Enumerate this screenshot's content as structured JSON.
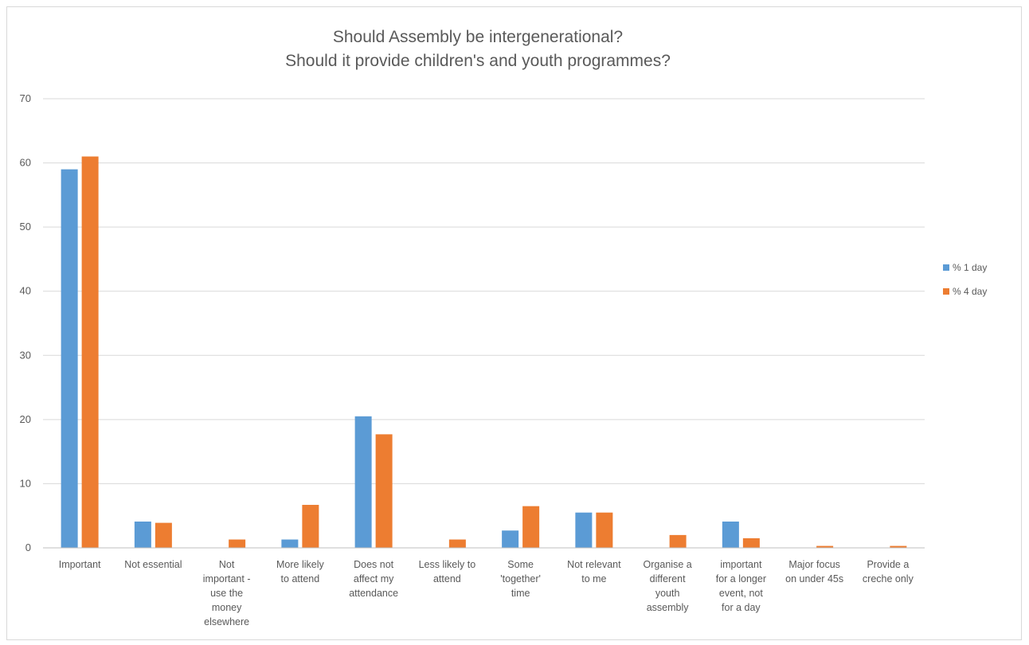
{
  "chart_data": {
    "type": "bar",
    "title": [
      "Should Assembly be intergenerational?",
      "Should it provide children's and youth programmes?"
    ],
    "categories": [
      [
        "Important"
      ],
      [
        "Not essential"
      ],
      [
        "Not",
        "important -",
        "use the",
        "money",
        "elsewhere"
      ],
      [
        "More likely",
        "to attend"
      ],
      [
        "Does not",
        "affect my",
        "attendance"
      ],
      [
        "Less likely to",
        "attend"
      ],
      [
        "Some",
        "'together'",
        "time"
      ],
      [
        "Not relevant",
        "to me"
      ],
      [
        "Organise a",
        "different",
        "youth",
        "assembly"
      ],
      [
        "important",
        "for a longer",
        "event, not",
        "for a day"
      ],
      [
        "Major focus",
        "on under 45s"
      ],
      [
        "Provide a",
        "creche only"
      ]
    ],
    "series": [
      {
        "name": "% 1 day",
        "color": "#5b9bd5",
        "values": [
          59,
          4.1,
          0,
          1.3,
          20.5,
          0,
          2.7,
          5.5,
          0,
          4.1,
          0,
          0
        ]
      },
      {
        "name": "% 4 day",
        "color": "#ed7d31",
        "values": [
          61,
          3.9,
          1.3,
          6.7,
          17.7,
          1.3,
          6.5,
          5.5,
          2.0,
          1.5,
          0.3,
          0.3
        ]
      }
    ],
    "ylim": [
      0,
      70
    ],
    "yticks": [
      0,
      10,
      20,
      30,
      40,
      50,
      60,
      70
    ],
    "grid": true,
    "legend": "right",
    "gridColor": "#d9d9d9",
    "axisColor": "#bfbfbf"
  }
}
